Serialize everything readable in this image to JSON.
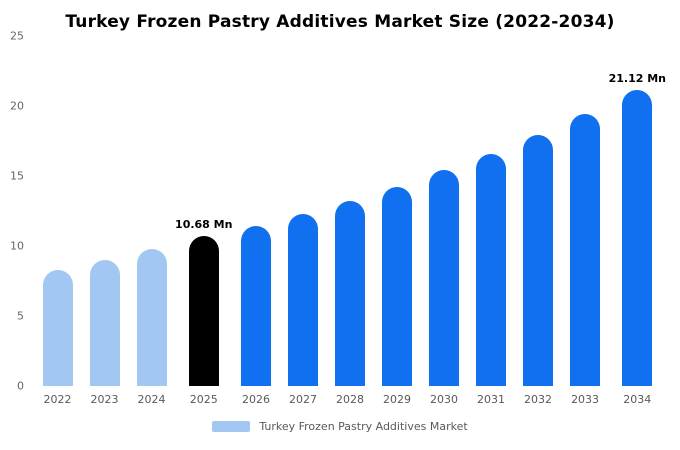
{
  "title": "Turkey Frozen Pastry Additives Market Size (2022-2034)",
  "legend": {
    "label": "Turkey Frozen Pastry Additives Market",
    "swatch_color": "#a3c7f3"
  },
  "colors": {
    "historical": "#a3c7f3",
    "base_year": "#000000",
    "forecast": "#1170ef",
    "background": "#ffffff",
    "axis_text": "#666666"
  },
  "chart_data": {
    "type": "bar",
    "title": "Turkey Frozen Pastry Additives Market Size (2022-2034)",
    "categories": [
      "2022",
      "2023",
      "2024",
      "2025",
      "2026",
      "2027",
      "2028",
      "2029",
      "2030",
      "2031",
      "2032",
      "2033",
      "2034"
    ],
    "values": [
      8.3,
      9.0,
      9.8,
      10.68,
      11.45,
      12.3,
      13.2,
      14.25,
      15.4,
      16.6,
      17.9,
      19.4,
      21.12
    ],
    "bar_colors": [
      "#a3c7f3",
      "#a3c7f3",
      "#a3c7f3",
      "#000000",
      "#1170ef",
      "#1170ef",
      "#1170ef",
      "#1170ef",
      "#1170ef",
      "#1170ef",
      "#1170ef",
      "#1170ef",
      "#1170ef"
    ],
    "data_labels": {
      "2025": "10.68 Mn",
      "2034": "21.12 Mn"
    },
    "unit": "Mn",
    "xlabel": "",
    "ylabel": "",
    "ylim": [
      0,
      25
    ],
    "yticks": [
      0,
      5,
      10,
      15,
      20,
      25
    ],
    "grid": false,
    "legend_position": "bottom",
    "legend_entries": [
      "Turkey Frozen Pastry Additives Market"
    ]
  }
}
